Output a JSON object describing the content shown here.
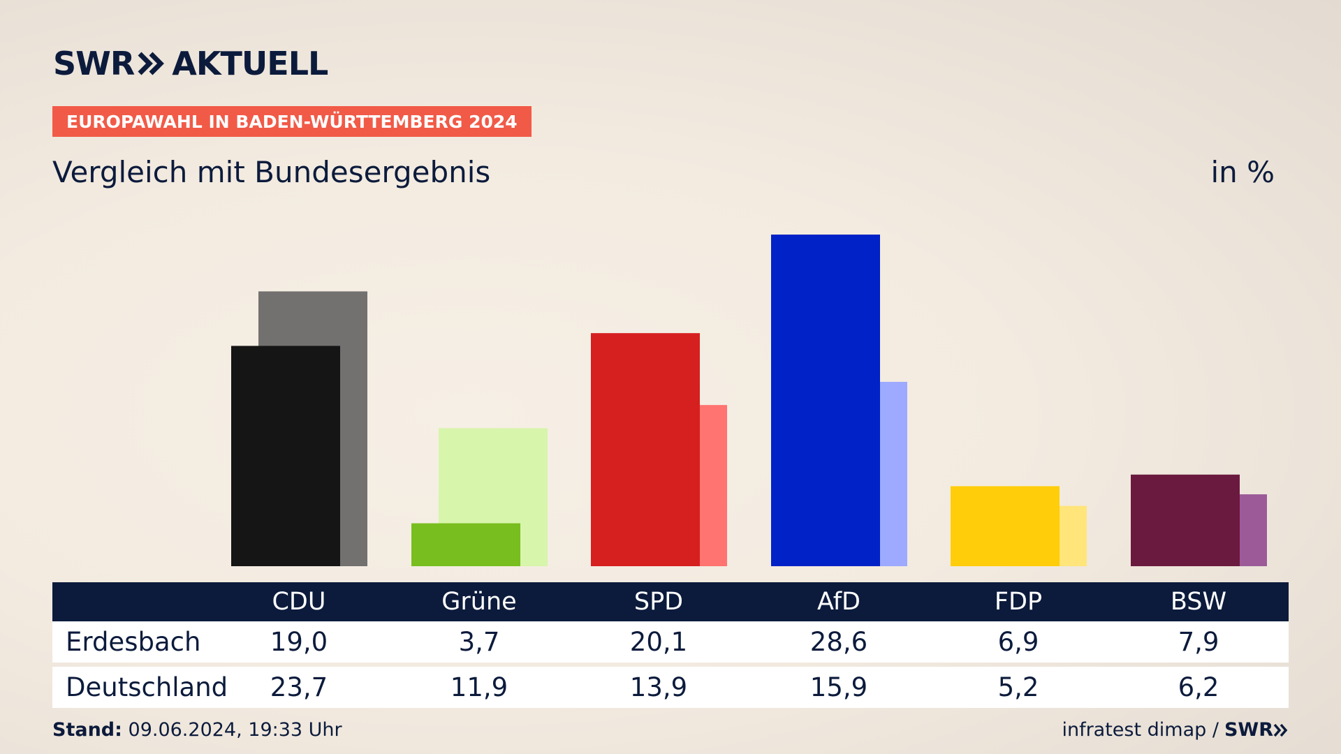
{
  "header": {
    "logo_text": "SWR",
    "logo_suffix": "AKTUELL",
    "badge": "EUROPAWAHL IN BADEN-WÜRTTEMBERG 2024",
    "subtitle": "Vergleich mit Bundesergebnis",
    "unit": "in %",
    "badge_color": "#f15a47"
  },
  "chart_data": {
    "type": "bar",
    "categories": [
      "CDU",
      "Grüne",
      "SPD",
      "AfD",
      "FDP",
      "BSW"
    ],
    "series": [
      {
        "name": "Erdesbach",
        "values": [
          19.0,
          3.7,
          20.1,
          28.6,
          6.9,
          7.9
        ],
        "colors": [
          "#151515",
          "#78be1e",
          "#d61f1f",
          "#0022c6",
          "#ffcd0a",
          "#6b1a3f"
        ]
      },
      {
        "name": "Deutschland",
        "values": [
          23.7,
          11.9,
          13.9,
          15.9,
          5.2,
          6.2
        ],
        "colors": [
          "#727170",
          "#d7f5ab",
          "#ff7470",
          "#9eaaff",
          "#ffe57a",
          "#9c5b98"
        ]
      }
    ],
    "ylim": [
      0,
      28.6
    ]
  },
  "table": {
    "headers": [
      "CDU",
      "Grüne",
      "SPD",
      "AfD",
      "FDP",
      "BSW"
    ],
    "rows": [
      {
        "label": "Erdesbach",
        "values": [
          "19,0",
          "3,7",
          "20,1",
          "28,6",
          "6,9",
          "7,9"
        ]
      },
      {
        "label": "Deutschland",
        "values": [
          "23,7",
          "11,9",
          "13,9",
          "15,9",
          "5,2",
          "6,2"
        ]
      }
    ]
  },
  "footer": {
    "stand_label": "Stand:",
    "stand_value": "09.06.2024, 19:33 Uhr",
    "source": "infratest dimap /",
    "source_logo": "SWR"
  }
}
